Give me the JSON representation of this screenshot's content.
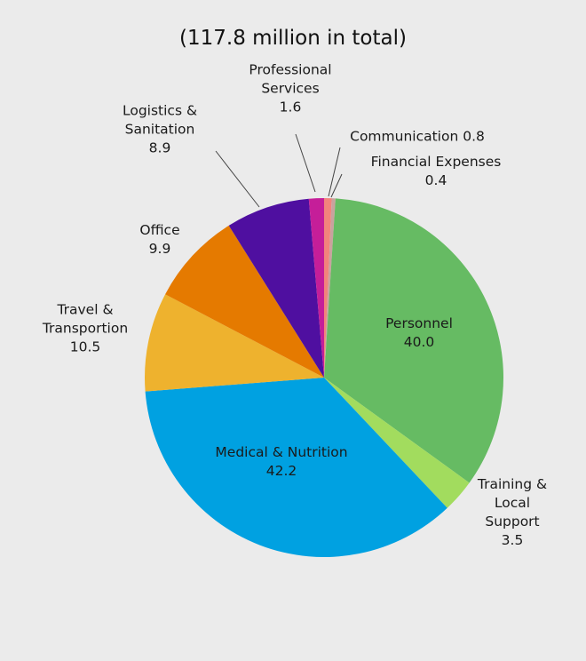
{
  "chart_data": {
    "type": "pie",
    "title": "(117.8 million in total)",
    "categories": [
      "Communication",
      "Financial Expenses",
      "Personnel",
      "Training &\nLocal Support",
      "Medical & Nutrition",
      "Travel &\nTransportion",
      "Office",
      "Logistics &\nSanitation",
      "Professional\nServices"
    ],
    "values": [
      0.8,
      0.4,
      40,
      3.5,
      42.2,
      10.5,
      9.9,
      8.9,
      1.6
    ],
    "value_labels": [
      "0.8",
      "0.4",
      "40.0",
      "3.5",
      "42.2",
      "10.5",
      "9.9",
      "8.9",
      "1.6"
    ],
    "colors": [
      "#f2837c",
      "#c9a29e",
      "#66bb63",
      "#a2dc5e",
      "#00a1e1",
      "#eeb22e",
      "#e57a00",
      "#4f0fa0",
      "#c51e99"
    ]
  }
}
